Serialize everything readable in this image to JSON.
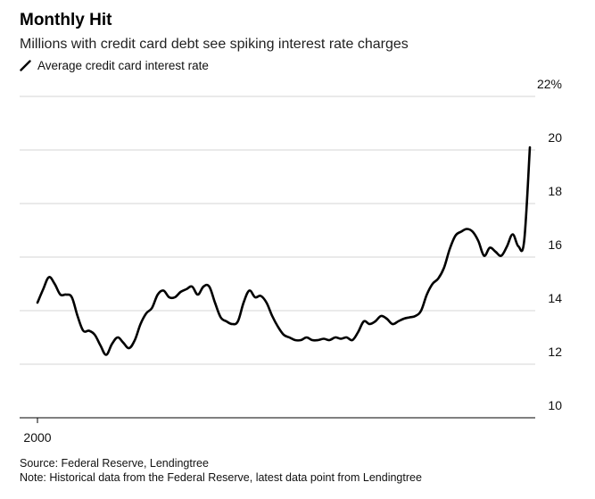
{
  "title": "Monthly Hit",
  "subtitle": "Millions with credit card debt see spiking interest rate charges",
  "chart_data": {
    "type": "line",
    "series": [
      {
        "name": "Average credit card interest rate",
        "color": "#000000",
        "points": [
          [
            2000.0,
            14.3
          ],
          [
            2000.25,
            14.8
          ],
          [
            2000.5,
            15.25
          ],
          [
            2000.75,
            15.0
          ],
          [
            2001.0,
            14.6
          ],
          [
            2001.25,
            14.6
          ],
          [
            2001.5,
            14.5
          ],
          [
            2001.75,
            13.8
          ],
          [
            2002.0,
            13.25
          ],
          [
            2002.25,
            13.25
          ],
          [
            2002.5,
            13.1
          ],
          [
            2002.75,
            12.7
          ],
          [
            2003.0,
            12.35
          ],
          [
            2003.25,
            12.75
          ],
          [
            2003.5,
            13.0
          ],
          [
            2003.75,
            12.8
          ],
          [
            2004.0,
            12.6
          ],
          [
            2004.25,
            12.9
          ],
          [
            2004.5,
            13.5
          ],
          [
            2004.75,
            13.9
          ],
          [
            2005.0,
            14.1
          ],
          [
            2005.25,
            14.6
          ],
          [
            2005.5,
            14.75
          ],
          [
            2005.75,
            14.5
          ],
          [
            2006.0,
            14.5
          ],
          [
            2006.25,
            14.7
          ],
          [
            2006.5,
            14.8
          ],
          [
            2006.75,
            14.9
          ],
          [
            2007.0,
            14.6
          ],
          [
            2007.25,
            14.9
          ],
          [
            2007.5,
            14.9
          ],
          [
            2007.75,
            14.3
          ],
          [
            2008.0,
            13.75
          ],
          [
            2008.25,
            13.6
          ],
          [
            2008.5,
            13.5
          ],
          [
            2008.75,
            13.6
          ],
          [
            2009.0,
            14.3
          ],
          [
            2009.25,
            14.75
          ],
          [
            2009.5,
            14.5
          ],
          [
            2009.75,
            14.55
          ],
          [
            2010.0,
            14.3
          ],
          [
            2010.25,
            13.8
          ],
          [
            2010.5,
            13.4
          ],
          [
            2010.75,
            13.1
          ],
          [
            2011.0,
            13.0
          ],
          [
            2011.25,
            12.9
          ],
          [
            2011.5,
            12.9
          ],
          [
            2011.75,
            13.0
          ],
          [
            2012.0,
            12.9
          ],
          [
            2012.25,
            12.9
          ],
          [
            2012.5,
            12.95
          ],
          [
            2012.75,
            12.9
          ],
          [
            2013.0,
            13.0
          ],
          [
            2013.25,
            12.95
          ],
          [
            2013.5,
            13.0
          ],
          [
            2013.75,
            12.9
          ],
          [
            2014.0,
            13.2
          ],
          [
            2014.25,
            13.6
          ],
          [
            2014.5,
            13.5
          ],
          [
            2014.75,
            13.6
          ],
          [
            2015.0,
            13.8
          ],
          [
            2015.25,
            13.7
          ],
          [
            2015.5,
            13.5
          ],
          [
            2015.75,
            13.6
          ],
          [
            2016.0,
            13.7
          ],
          [
            2016.25,
            13.75
          ],
          [
            2016.5,
            13.8
          ],
          [
            2016.75,
            14.0
          ],
          [
            2017.0,
            14.6
          ],
          [
            2017.25,
            15.0
          ],
          [
            2017.5,
            15.2
          ],
          [
            2017.75,
            15.6
          ],
          [
            2018.0,
            16.3
          ],
          [
            2018.25,
            16.8
          ],
          [
            2018.5,
            16.95
          ],
          [
            2018.75,
            17.05
          ],
          [
            2019.0,
            16.95
          ],
          [
            2019.25,
            16.6
          ],
          [
            2019.5,
            16.05
          ],
          [
            2019.75,
            16.35
          ],
          [
            2020.0,
            16.2
          ],
          [
            2020.25,
            16.05
          ],
          [
            2020.5,
            16.4
          ],
          [
            2020.75,
            16.85
          ],
          [
            2021.0,
            16.4
          ],
          [
            2021.25,
            16.6
          ],
          [
            2021.5,
            20.1
          ]
        ]
      }
    ],
    "x_ticks": [
      2000
    ],
    "x_tick_labels": [
      "2000"
    ],
    "xlim": [
      2000,
      2021.5
    ],
    "y_ticks": [
      10,
      12,
      14,
      16,
      18,
      20,
      22
    ],
    "y_tick_labels": [
      "10",
      "12",
      "14",
      "16",
      "18",
      "20",
      "22%"
    ],
    "ylim": [
      10,
      22
    ],
    "grid": true,
    "legend_position": "top-left"
  },
  "footer": {
    "source": "Source: Federal Reserve, Lendingtree",
    "note": "Note: Historical data from the Federal Reserve, latest data point from Lendingtree"
  }
}
